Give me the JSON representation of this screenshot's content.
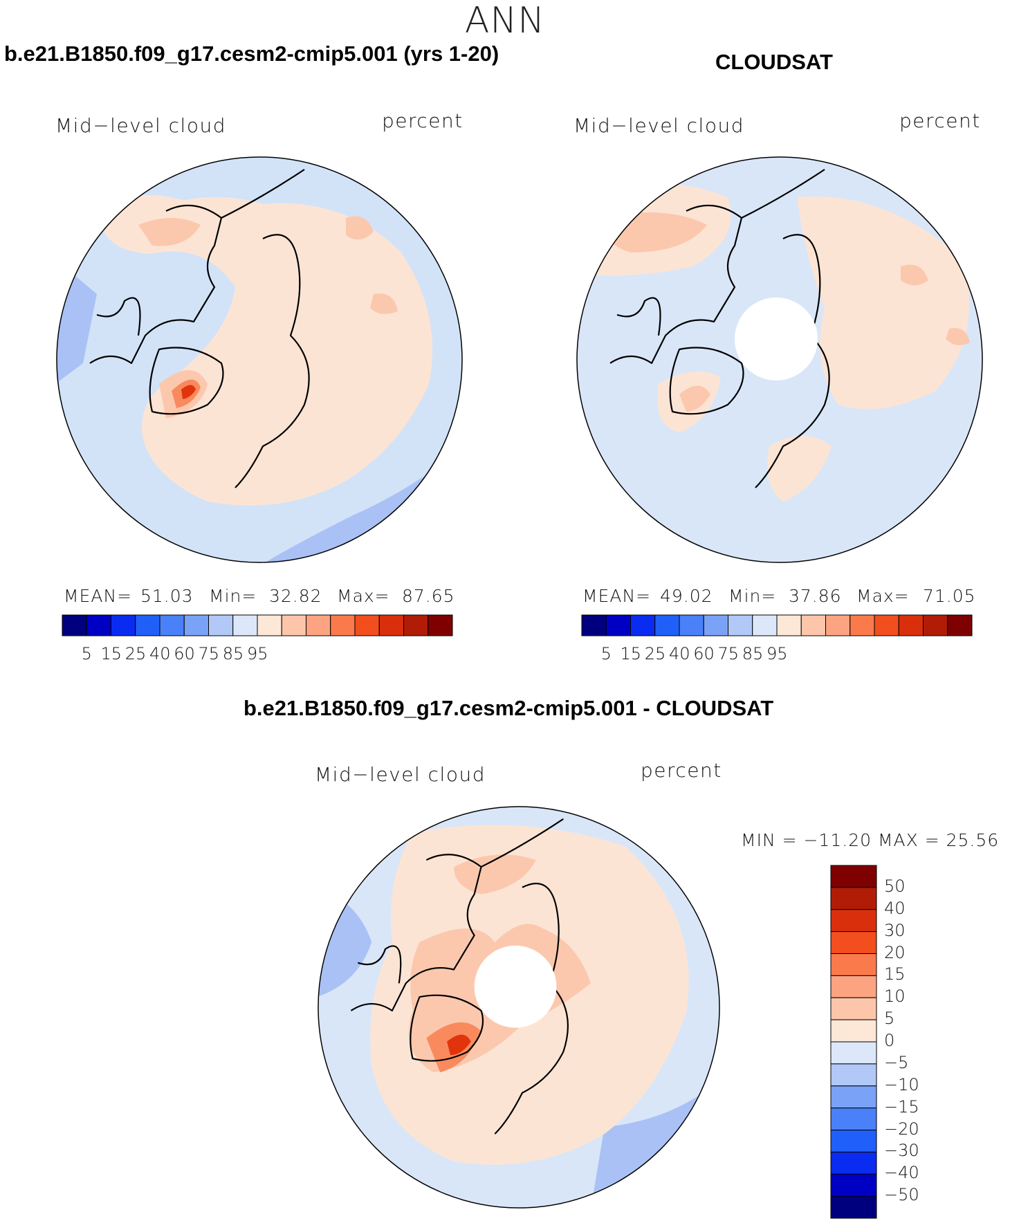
{
  "title": "ANN",
  "colors": {
    "seq": [
      "#00007f",
      "#0000c4",
      "#0a2cf0",
      "#2060f8",
      "#4a80f8",
      "#7aa2f6",
      "#b2c8f6",
      "#dce8fa",
      "#fde7d7",
      "#fdc6ab",
      "#fca482",
      "#fb7a4c",
      "#f24e1e",
      "#da2f0c",
      "#b01c06",
      "#7f0000"
    ],
    "ocean_model": "#d2e3f8",
    "ocean_obs": "#d9e6f8",
    "warm_light": "#fce4d4",
    "warm_mid": "#fbc8ae",
    "warm_strong": "#f98a5e",
    "warm_peak": "#e1340c",
    "cool_mid": "#a9c1f4",
    "coast": "#000000",
    "hole": "#ffffff"
  },
  "panels": {
    "model": {
      "title": "b.e21.B1850.f09_g17.cesm2-cmip5.001 (yrs 1-20)",
      "variable": "Mid−level cloud",
      "units": "percent",
      "mean_label": "MEAN=",
      "mean": "51.03",
      "min_label": "Min=",
      "min": "32.82",
      "max_label": "Max=",
      "max": "87.65"
    },
    "obs": {
      "title": "CLOUDSAT",
      "variable": "Mid−level cloud",
      "units": "percent",
      "mean_label": "MEAN=",
      "mean": "49.02",
      "min_label": "Min=",
      "min": "37.86",
      "max_label": "Max=",
      "max": "71.05"
    },
    "diff": {
      "title": "b.e21.B1850.f09_g17.cesm2-cmip5.001 - CLOUDSAT",
      "variable": "Mid−level cloud",
      "units": "percent",
      "minmax_text": "MIN = −11.20 MAX =   25.56"
    }
  },
  "colorbar_horizontal": {
    "ticks": [
      "5",
      "15",
      "25",
      "40",
      "60",
      "75",
      "85",
      "95"
    ]
  },
  "colorbar_diff": {
    "colors": [
      "#7f0000",
      "#b01c06",
      "#da2f0c",
      "#f24e1e",
      "#fb7a4c",
      "#fca482",
      "#fdc6ab",
      "#fde7d7",
      "#dce8fa",
      "#b2c8f6",
      "#7aa2f6",
      "#4a80f8",
      "#2060f8",
      "#0a2cf0",
      "#0000c4",
      "#00007f"
    ],
    "ticks": [
      "50",
      "40",
      "30",
      "20",
      "15",
      "10",
      "5",
      "0",
      "−5",
      "−10",
      "−15",
      "−20",
      "−30",
      "−40",
      "−50"
    ]
  }
}
